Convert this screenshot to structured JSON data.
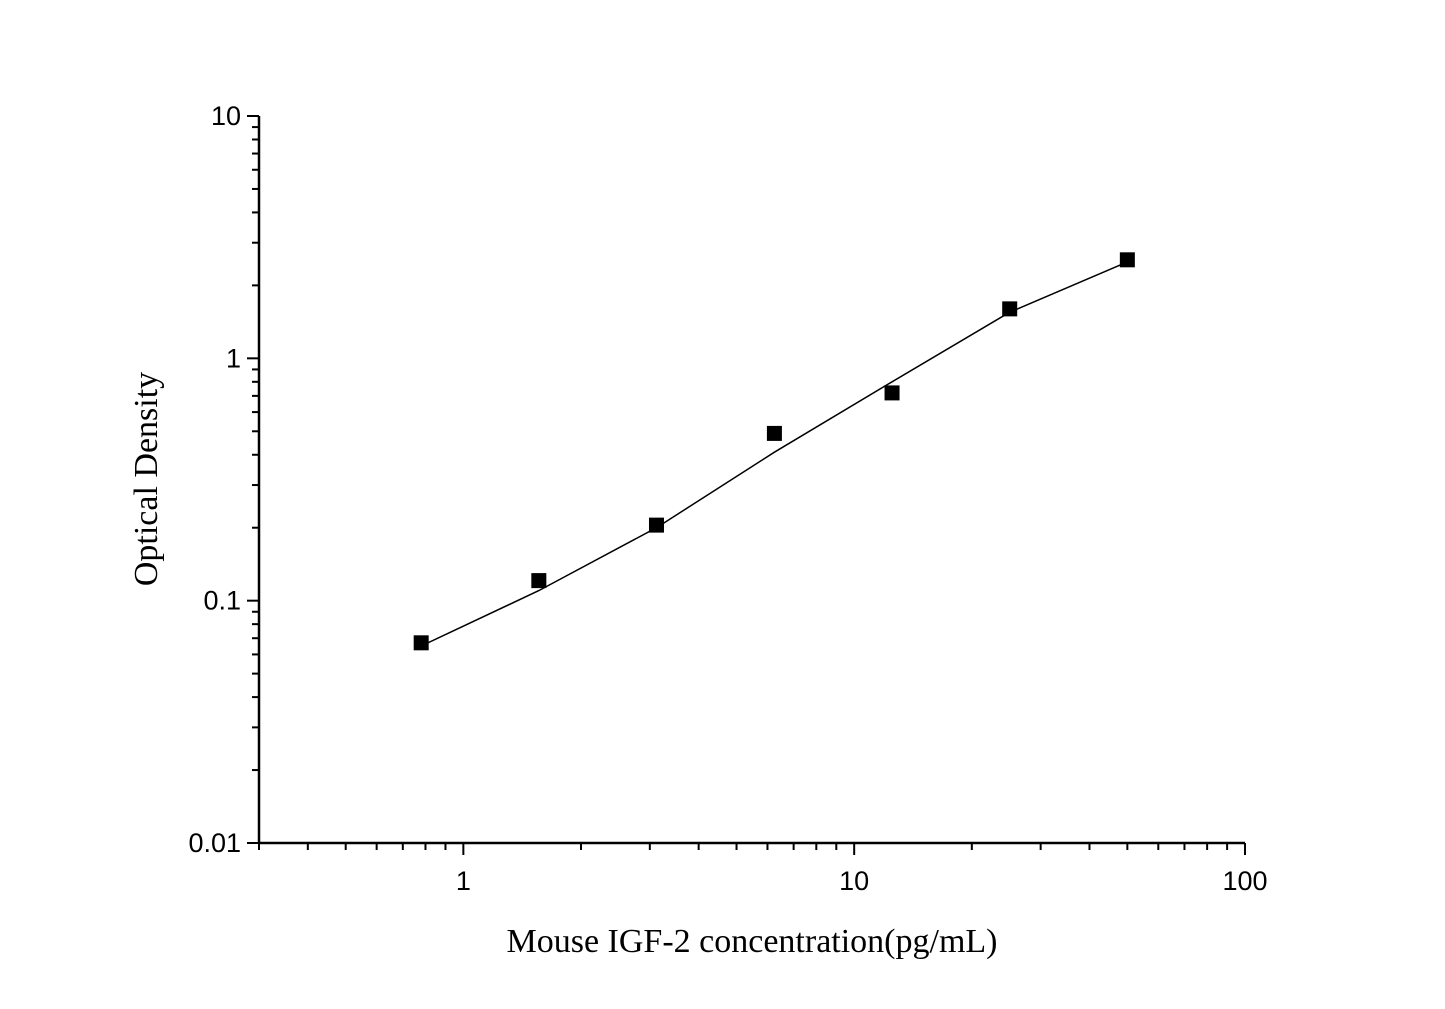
{
  "chart_data": {
    "type": "scatter",
    "title": "",
    "xlabel": "Mouse IGF-2 concentration(pg/mL)",
    "ylabel": "Optical Density",
    "xscale": "log",
    "yscale": "log",
    "xlim": [
      0.3,
      100
    ],
    "ylim": [
      0.01,
      10
    ],
    "x_ticks": [
      {
        "value": 1,
        "label": "1"
      },
      {
        "value": 10,
        "label": "10"
      },
      {
        "value": 100,
        "label": "100"
      }
    ],
    "y_ticks": [
      {
        "value": 0.01,
        "label": "0.01"
      },
      {
        "value": 0.1,
        "label": "0.1"
      },
      {
        "value": 1,
        "label": "1"
      },
      {
        "value": 10,
        "label": "10"
      }
    ],
    "grid": false,
    "marker_color": "#000000",
    "line_color": "#000000",
    "series": [
      {
        "kind": "points",
        "marker": "square",
        "x": [
          0.78,
          1.56,
          3.12,
          6.25,
          12.5,
          25,
          50
        ],
        "y": [
          0.067,
          0.121,
          0.205,
          0.49,
          0.72,
          1.6,
          2.55
        ]
      },
      {
        "kind": "fit-line",
        "x": [
          0.78,
          1.56,
          3.12,
          6.25,
          12.5,
          25,
          50
        ],
        "y": [
          0.065,
          0.11,
          0.2,
          0.41,
          0.8,
          1.55,
          2.5
        ]
      }
    ]
  }
}
